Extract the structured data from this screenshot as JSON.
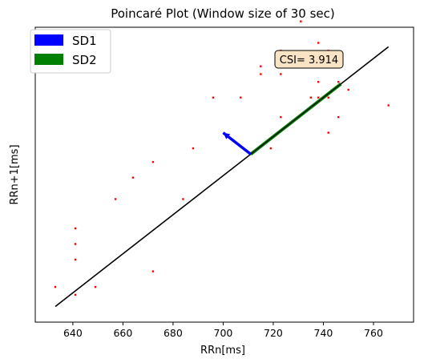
{
  "chart_data": {
    "type": "scatter",
    "title": "Poincaré Plot (Window size of 30 sec)",
    "xlabel": "RRn[ms]",
    "ylabel": "RRn+1[ms]",
    "xlim": [
      625,
      776
    ],
    "ylim": [
      625,
      776
    ],
    "x_ticks": [
      640,
      660,
      680,
      700,
      720,
      740,
      760
    ],
    "y_ticks_shown": false,
    "grid": false,
    "legend_position": "top-left",
    "legend": [
      {
        "label": "SD1",
        "color": "#0000ff"
      },
      {
        "label": "SD2",
        "color": "#008000"
      }
    ],
    "annotation": {
      "text": "CSI= 3.914",
      "position": "top-right"
    },
    "identity_line": {
      "from": [
        633,
        633
      ],
      "to": [
        766,
        766
      ],
      "color": "#000000"
    },
    "sd1_arrow": {
      "from": [
        711,
        711
      ],
      "to": [
        700,
        722
      ],
      "color": "#0000ff"
    },
    "sd2_arrow": {
      "from": [
        711,
        711
      ],
      "to": [
        747,
        747
      ],
      "color": "#008000"
    },
    "points": [
      {
        "x": 633,
        "y": 643
      },
      {
        "x": 641,
        "y": 639
      },
      {
        "x": 641,
        "y": 657
      },
      {
        "x": 641,
        "y": 665
      },
      {
        "x": 641,
        "y": 673
      },
      {
        "x": 649,
        "y": 643
      },
      {
        "x": 657,
        "y": 688
      },
      {
        "x": 664,
        "y": 699
      },
      {
        "x": 672,
        "y": 651
      },
      {
        "x": 672,
        "y": 707
      },
      {
        "x": 684,
        "y": 688
      },
      {
        "x": 688,
        "y": 714
      },
      {
        "x": 696,
        "y": 740
      },
      {
        "x": 707,
        "y": 740
      },
      {
        "x": 715,
        "y": 752
      },
      {
        "x": 715,
        "y": 756
      },
      {
        "x": 719,
        "y": 714
      },
      {
        "x": 723,
        "y": 730
      },
      {
        "x": 723,
        "y": 752
      },
      {
        "x": 723,
        "y": 756
      },
      {
        "x": 723,
        "y": 760
      },
      {
        "x": 723,
        "y": 764
      },
      {
        "x": 727,
        "y": 760
      },
      {
        "x": 731,
        "y": 760
      },
      {
        "x": 731,
        "y": 779
      },
      {
        "x": 735,
        "y": 740
      },
      {
        "x": 735,
        "y": 756
      },
      {
        "x": 738,
        "y": 740
      },
      {
        "x": 738,
        "y": 748
      },
      {
        "x": 738,
        "y": 768
      },
      {
        "x": 742,
        "y": 722
      },
      {
        "x": 742,
        "y": 740
      },
      {
        "x": 742,
        "y": 764
      },
      {
        "x": 746,
        "y": 730
      },
      {
        "x": 746,
        "y": 748
      },
      {
        "x": 746,
        "y": 760
      },
      {
        "x": 750,
        "y": 744
      },
      {
        "x": 766,
        "y": 736
      }
    ]
  }
}
